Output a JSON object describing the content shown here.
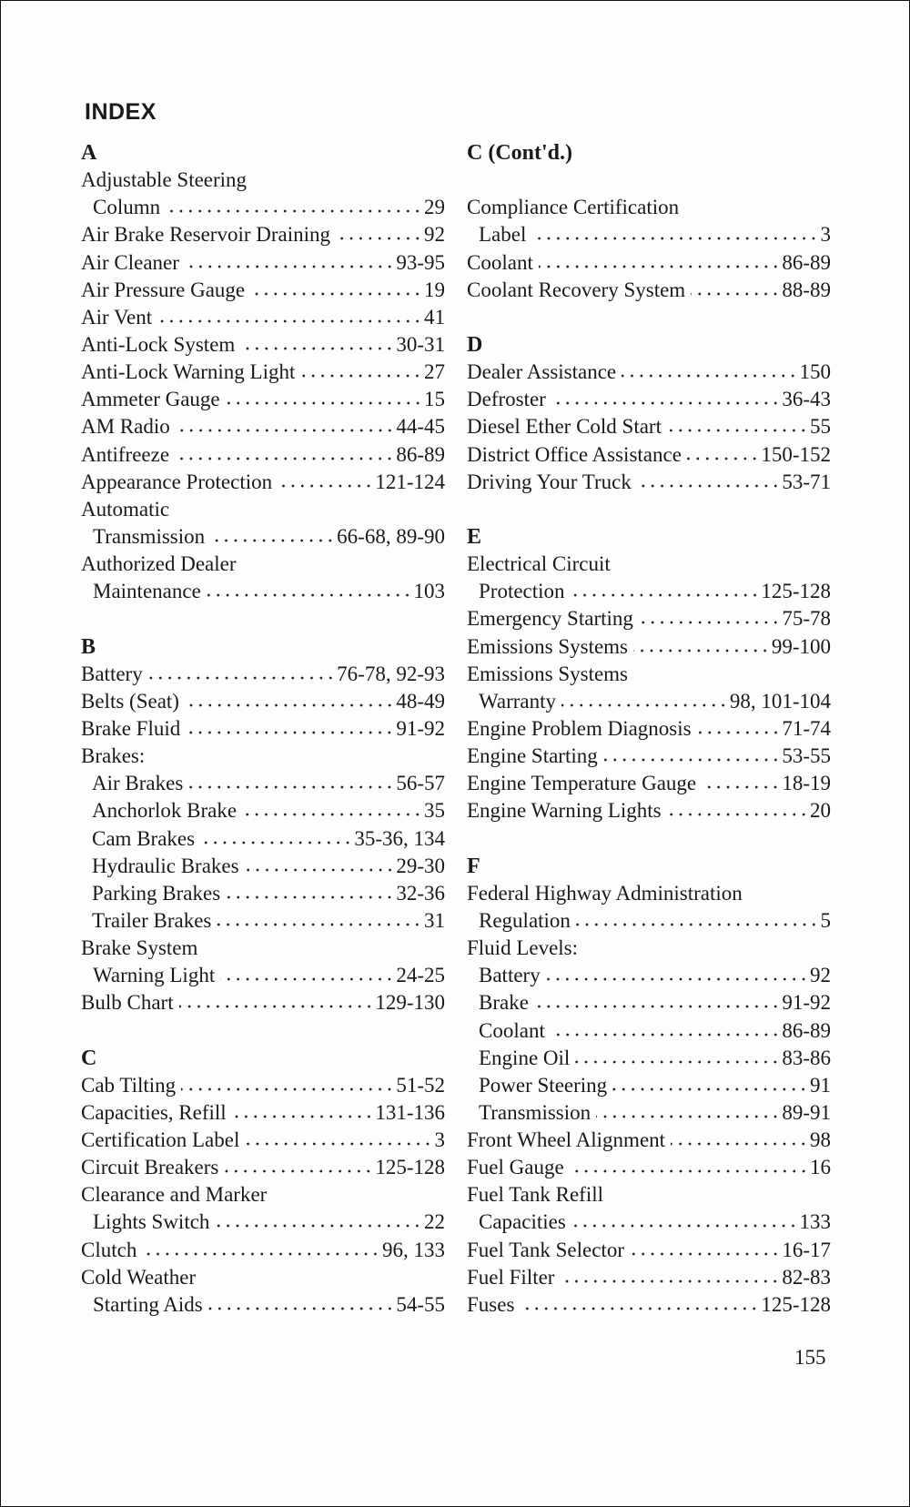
{
  "title": "INDEX",
  "page_number": "155",
  "columns": [
    [
      {
        "t": "heading",
        "text": "A"
      },
      {
        "t": "entry",
        "text": "Adjustable Steering"
      },
      {
        "t": "entry",
        "text": "Column",
        "page": "29",
        "ind": 1
      },
      {
        "t": "entry",
        "text": "Air Brake Reservoir Draining",
        "page": "92"
      },
      {
        "t": "entry",
        "text": "Air Cleaner",
        "page": "93-95"
      },
      {
        "t": "entry",
        "text": "Air Pressure Gauge",
        "page": "19"
      },
      {
        "t": "entry",
        "text": "Air Vent",
        "page": "41"
      },
      {
        "t": "entry",
        "text": "Anti-Lock System",
        "page": "30-31"
      },
      {
        "t": "entry",
        "text": "Anti-Lock Warning Light",
        "page": "27"
      },
      {
        "t": "entry",
        "text": "Ammeter Gauge",
        "page": "15"
      },
      {
        "t": "entry",
        "text": "AM Radio",
        "page": "44-45"
      },
      {
        "t": "entry",
        "text": "Antifreeze",
        "page": "86-89"
      },
      {
        "t": "entry",
        "text": "Appearance Protection",
        "page": "121-124"
      },
      {
        "t": "entry",
        "text": "Automatic"
      },
      {
        "t": "entry",
        "text": "Transmission",
        "page": "66-68, 89-90",
        "ind": 1
      },
      {
        "t": "entry",
        "text": "Authorized Dealer"
      },
      {
        "t": "entry",
        "text": "Maintenance",
        "page": "103",
        "ind": 1
      },
      {
        "t": "blank"
      },
      {
        "t": "heading",
        "text": "B"
      },
      {
        "t": "entry",
        "text": "Battery",
        "page": "76-78, 92-93"
      },
      {
        "t": "entry",
        "text": "Belts (Seat)",
        "page": "48-49"
      },
      {
        "t": "entry",
        "text": "Brake Fluid",
        "page": "91-92"
      },
      {
        "t": "entry",
        "text": "Brakes:"
      },
      {
        "t": "entry",
        "text": "Air Brakes",
        "page": "56-57",
        "ind": 2
      },
      {
        "t": "entry",
        "text": "Anchorlok Brake",
        "page": "35",
        "ind": 2
      },
      {
        "t": "entry",
        "text": "Cam Brakes",
        "page": "35-36, 134",
        "ind": 2
      },
      {
        "t": "entry",
        "text": "Hydraulic Brakes",
        "page": "29-30",
        "ind": 2
      },
      {
        "t": "entry",
        "text": "Parking Brakes",
        "page": "32-36",
        "ind": 2
      },
      {
        "t": "entry",
        "text": "Trailer Brakes",
        "page": "31",
        "ind": 2
      },
      {
        "t": "entry",
        "text": "Brake System"
      },
      {
        "t": "entry",
        "text": "Warning Light",
        "page": "24-25",
        "ind": 1
      },
      {
        "t": "entry",
        "text": "Bulb Chart",
        "page": "129-130"
      },
      {
        "t": "blank"
      },
      {
        "t": "heading",
        "text": "C"
      },
      {
        "t": "entry",
        "text": "Cab Tilting",
        "page": "51-52"
      },
      {
        "t": "entry",
        "text": "Capacities, Refill",
        "page": "131-136"
      },
      {
        "t": "entry",
        "text": "Certification Label",
        "page": "3"
      },
      {
        "t": "entry",
        "text": "Circuit Breakers",
        "page": "125-128"
      },
      {
        "t": "entry",
        "text": "Clearance and Marker"
      },
      {
        "t": "entry",
        "text": "Lights Switch",
        "page": "22",
        "ind": 1
      },
      {
        "t": "entry",
        "text": "Clutch",
        "page": "96, 133"
      },
      {
        "t": "entry",
        "text": "Cold Weather"
      },
      {
        "t": "entry",
        "text": "Starting Aids",
        "page": "54-55",
        "ind": 1
      }
    ],
    [
      {
        "t": "heading",
        "text": "C (Cont'd.)"
      },
      {
        "t": "blank"
      },
      {
        "t": "entry",
        "text": "Compliance Certification"
      },
      {
        "t": "entry",
        "text": "Label",
        "page": "3",
        "ind": 1
      },
      {
        "t": "entry",
        "text": "Coolant",
        "page": "86-89"
      },
      {
        "t": "entry",
        "text": "Coolant Recovery System",
        "page": "88-89"
      },
      {
        "t": "blank"
      },
      {
        "t": "heading",
        "text": "D"
      },
      {
        "t": "entry",
        "text": "Dealer Assistance",
        "page": "150"
      },
      {
        "t": "entry",
        "text": "Defroster",
        "page": "36-43"
      },
      {
        "t": "entry",
        "text": "Diesel Ether Cold Start",
        "page": "55"
      },
      {
        "t": "entry",
        "text": "District Office Assistance",
        "page": "150-152"
      },
      {
        "t": "entry",
        "text": "Driving Your Truck",
        "page": "53-71"
      },
      {
        "t": "blank"
      },
      {
        "t": "heading",
        "text": "E"
      },
      {
        "t": "entry",
        "text": "Electrical Circuit"
      },
      {
        "t": "entry",
        "text": "Protection",
        "page": "125-128",
        "ind": 1
      },
      {
        "t": "entry",
        "text": "Emergency Starting",
        "page": "75-78"
      },
      {
        "t": "entry",
        "text": "Emissions Systems",
        "page": "99-100"
      },
      {
        "t": "entry",
        "text": "Emissions Systems"
      },
      {
        "t": "entry",
        "text": "Warranty",
        "page": "98, 101-104",
        "ind": 1
      },
      {
        "t": "entry",
        "text": "Engine Problem Diagnosis",
        "page": "71-74"
      },
      {
        "t": "entry",
        "text": "Engine Starting",
        "page": "53-55"
      },
      {
        "t": "entry",
        "text": "Engine Temperature Gauge",
        "page": "18-19"
      },
      {
        "t": "entry",
        "text": "Engine Warning Lights",
        "page": "20"
      },
      {
        "t": "blank"
      },
      {
        "t": "heading",
        "text": "F"
      },
      {
        "t": "entry",
        "text": "Federal Highway Administration"
      },
      {
        "t": "entry",
        "text": "Regulation",
        "page": "5",
        "ind": 1
      },
      {
        "t": "entry",
        "text": "Fluid Levels:"
      },
      {
        "t": "entry",
        "text": "Battery",
        "page": "92",
        "ind": 1
      },
      {
        "t": "entry",
        "text": "Brake",
        "page": "91-92",
        "ind": 1
      },
      {
        "t": "entry",
        "text": "Coolant",
        "page": "86-89",
        "ind": 1
      },
      {
        "t": "entry",
        "text": "Engine Oil",
        "page": "83-86",
        "ind": 1
      },
      {
        "t": "entry",
        "text": "Power Steering",
        "page": "91",
        "ind": 1
      },
      {
        "t": "entry",
        "text": "Transmission",
        "page": "89-91",
        "ind": 1
      },
      {
        "t": "entry",
        "text": "Front Wheel Alignment",
        "page": "98"
      },
      {
        "t": "entry",
        "text": "Fuel Gauge",
        "page": "16"
      },
      {
        "t": "entry",
        "text": "Fuel Tank Refill"
      },
      {
        "t": "entry",
        "text": "Capacities",
        "page": "133",
        "ind": 1
      },
      {
        "t": "entry",
        "text": "Fuel Tank Selector",
        "page": "16-17"
      },
      {
        "t": "entry",
        "text": "Fuel Filter",
        "page": "82-83"
      },
      {
        "t": "entry",
        "text": "Fuses",
        "page": "125-128"
      }
    ]
  ]
}
